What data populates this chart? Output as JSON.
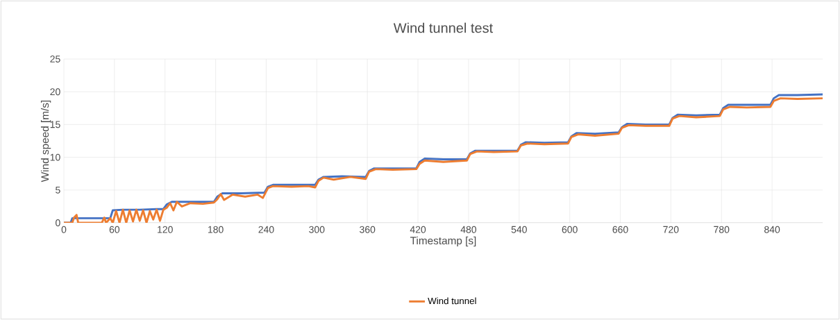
{
  "chart_data": {
    "type": "line",
    "title": "Wind tunnel test",
    "xlabel": "Timestamp [s]",
    "ylabel": "Wind speed [m/s]",
    "xlim": [
      0,
      900
    ],
    "xticks": [
      0,
      60,
      120,
      180,
      240,
      300,
      360,
      420,
      480,
      540,
      600,
      660,
      720,
      780,
      840
    ],
    "ylim": [
      0,
      25
    ],
    "yticks": [
      0,
      5,
      10,
      15,
      20,
      25
    ],
    "grid": true,
    "legend": "bottom",
    "series": [
      {
        "color": "#4472c4",
        "x": [
          0,
          8,
          10,
          50,
          55,
          58,
          70,
          90,
          110,
          118,
          122,
          128,
          150,
          178,
          182,
          188,
          210,
          238,
          242,
          248,
          270,
          298,
          302,
          308,
          330,
          358,
          362,
          368,
          390,
          418,
          422,
          428,
          450,
          478,
          482,
          488,
          510,
          538,
          542,
          548,
          570,
          598,
          602,
          608,
          630,
          658,
          662,
          668,
          690,
          718,
          722,
          728,
          750,
          778,
          782,
          788,
          810,
          838,
          842,
          848,
          870,
          900
        ],
        "values": [
          0,
          0,
          0.7,
          0.7,
          0.7,
          1.9,
          2.0,
          2.0,
          2.1,
          2.1,
          2.8,
          3.2,
          3.2,
          3.2,
          4.0,
          4.5,
          4.5,
          4.6,
          5.5,
          5.8,
          5.8,
          5.8,
          6.6,
          7.0,
          7.1,
          7.0,
          7.9,
          8.3,
          8.3,
          8.3,
          9.3,
          9.8,
          9.7,
          9.7,
          10.6,
          11.0,
          11.0,
          11.0,
          11.9,
          12.3,
          12.2,
          12.3,
          13.2,
          13.7,
          13.6,
          13.8,
          14.6,
          15.1,
          15.0,
          15.0,
          16.0,
          16.5,
          16.4,
          16.5,
          17.5,
          18.0,
          18.0,
          18.0,
          19.0,
          19.5,
          19.5,
          19.6
        ]
      },
      {
        "name": "Wind tunnel",
        "color": "#ed7d31",
        "x": [
          0,
          10,
          12,
          15,
          17,
          45,
          48,
          50,
          55,
          58,
          62,
          66,
          70,
          74,
          78,
          82,
          86,
          90,
          94,
          98,
          102,
          106,
          110,
          114,
          118,
          122,
          126,
          130,
          134,
          140,
          150,
          165,
          178,
          182,
          186,
          190,
          200,
          215,
          230,
          236,
          242,
          248,
          270,
          290,
          298,
          302,
          308,
          320,
          340,
          358,
          362,
          370,
          390,
          418,
          422,
          428,
          450,
          478,
          482,
          490,
          510,
          538,
          542,
          550,
          570,
          598,
          602,
          610,
          630,
          658,
          662,
          670,
          690,
          718,
          722,
          730,
          750,
          778,
          782,
          790,
          810,
          838,
          842,
          850,
          870,
          900
        ],
        "values": [
          0,
          0,
          0.8,
          1.2,
          0,
          0,
          0.8,
          0,
          0.7,
          0,
          1.8,
          0,
          2.0,
          0,
          1.9,
          0.2,
          2.0,
          0.3,
          1.9,
          0,
          1.8,
          0.5,
          2.0,
          0.3,
          2.0,
          2.3,
          3.0,
          1.9,
          3.2,
          2.5,
          3.0,
          2.9,
          3.1,
          3.6,
          4.4,
          3.5,
          4.3,
          4.0,
          4.3,
          3.8,
          5.3,
          5.6,
          5.5,
          5.6,
          5.4,
          6.4,
          6.9,
          6.6,
          7.0,
          6.7,
          7.8,
          8.2,
          8.1,
          8.2,
          9.0,
          9.5,
          9.3,
          9.5,
          10.5,
          10.9,
          10.8,
          10.9,
          11.8,
          12.1,
          12.0,
          12.1,
          13.1,
          13.5,
          13.3,
          13.6,
          14.5,
          14.9,
          14.8,
          14.8,
          15.9,
          16.3,
          16.1,
          16.3,
          17.3,
          17.7,
          17.6,
          17.7,
          18.6,
          19.0,
          18.9,
          19.0
        ]
      }
    ]
  }
}
